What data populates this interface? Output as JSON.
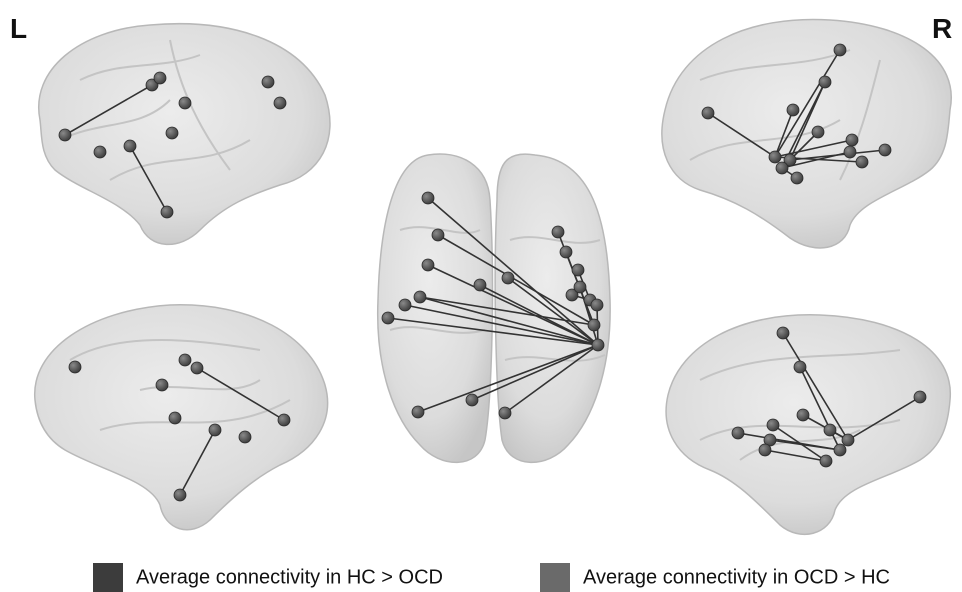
{
  "labels": {
    "left": "L",
    "right": "R"
  },
  "legend": [
    {
      "label": "Average connectivity in HC > OCD",
      "color": "#3c3c3c"
    },
    {
      "label": "Average connectivity in OCD > HC",
      "color": "#6a6a6a"
    }
  ]
}
